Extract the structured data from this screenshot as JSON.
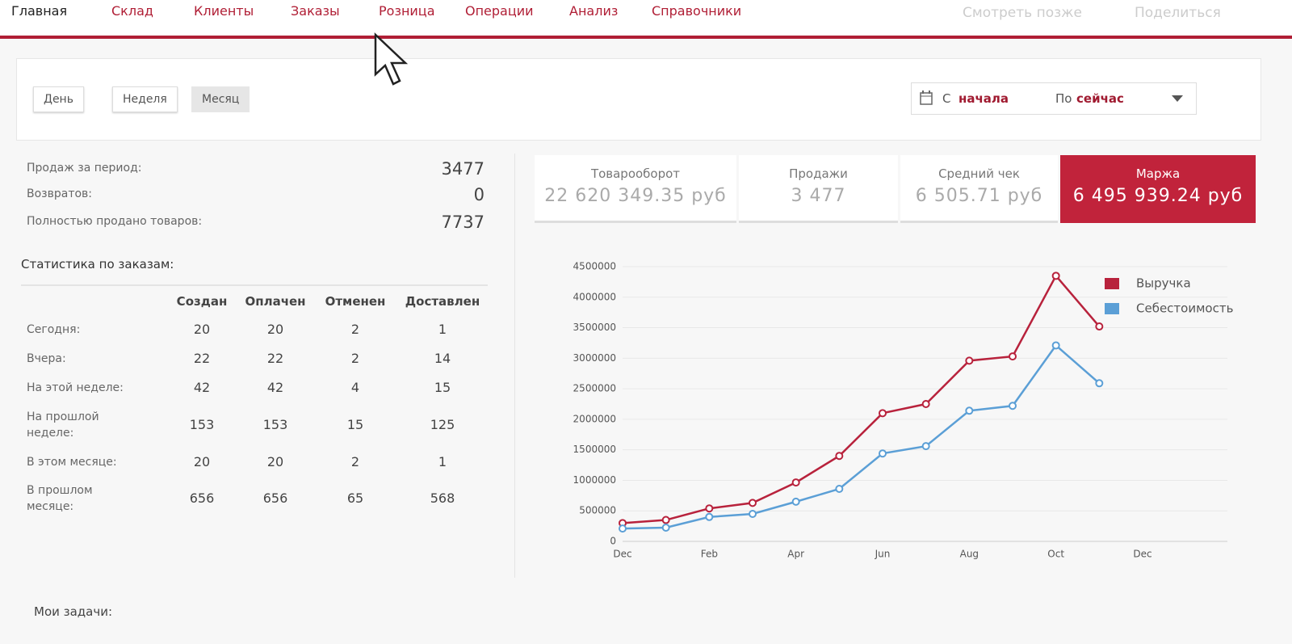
{
  "nav": {
    "items": [
      "Главная",
      "Склад",
      "Клиенты",
      "Заказы",
      "Розница",
      "Операции",
      "Анализ",
      "Справочники"
    ],
    "overlay": [
      "Смотреть позже",
      "Поделиться"
    ]
  },
  "period_buttons": [
    "День",
    "Неделя",
    "Месяц"
  ],
  "date_filter": {
    "from_label": "С",
    "from": "начала",
    "to_label": "По",
    "to": "сейчас"
  },
  "summary": [
    {
      "label": "Продаж за период:",
      "value": 3477
    },
    {
      "label": "Возвратов:",
      "value": 0
    },
    {
      "label": "Полностью продано товаров:",
      "value": 7737
    }
  ],
  "orders": {
    "title": "Статистика по заказам:",
    "columns": [
      "Создан",
      "Оплачен",
      "Отменен",
      "Доставлен"
    ],
    "rows": [
      {
        "label": "Сегодня:",
        "values": [
          20,
          20,
          2,
          1
        ]
      },
      {
        "label": "Вчера:",
        "values": [
          22,
          22,
          2,
          14
        ]
      },
      {
        "label": "На этой неделе:",
        "values": [
          42,
          42,
          4,
          15
        ]
      },
      {
        "label": "На прошлой неделе:",
        "values": [
          153,
          153,
          15,
          125
        ]
      },
      {
        "label": "В этом месяце:",
        "values": [
          20,
          20,
          2,
          1
        ]
      },
      {
        "label": "В прошлом месяце:",
        "values": [
          656,
          656,
          65,
          568
        ]
      }
    ]
  },
  "kpis": [
    {
      "label": "Товарооборот",
      "value": "22 620 349.35 руб"
    },
    {
      "label": "Продажи",
      "value": "3 477"
    },
    {
      "label": "Средний чек",
      "value": "6 505.71 руб"
    },
    {
      "label": "Маржа",
      "value": "6 495 939.24 руб"
    }
  ],
  "chart_data": {
    "type": "line",
    "categories": [
      "Dec",
      null,
      "Feb",
      null,
      "Apr",
      null,
      "Jun",
      null,
      "Aug",
      null,
      "Oct",
      null,
      "Dec"
    ],
    "series": [
      {
        "name": "Выручка",
        "color": "#b8223c",
        "values": [
          300000,
          350000,
          540000,
          630000,
          965000,
          1400000,
          2100000,
          2250000,
          2960000,
          3030000,
          4350000,
          3520000,
          null
        ]
      },
      {
        "name": "Себестоимость",
        "color": "#5b9fd6",
        "values": [
          210000,
          225000,
          400000,
          450000,
          650000,
          860000,
          1440000,
          1560000,
          2140000,
          2220000,
          3210000,
          2590000,
          null
        ]
      }
    ],
    "ylim": [
      0,
      4500000
    ],
    "yticks": [
      0,
      500000,
      1000000,
      1500000,
      2000000,
      2500000,
      3000000,
      3500000,
      4000000,
      4500000
    ],
    "grid": true,
    "legend": "top-right"
  },
  "tasks_title": "Мои задачи:"
}
